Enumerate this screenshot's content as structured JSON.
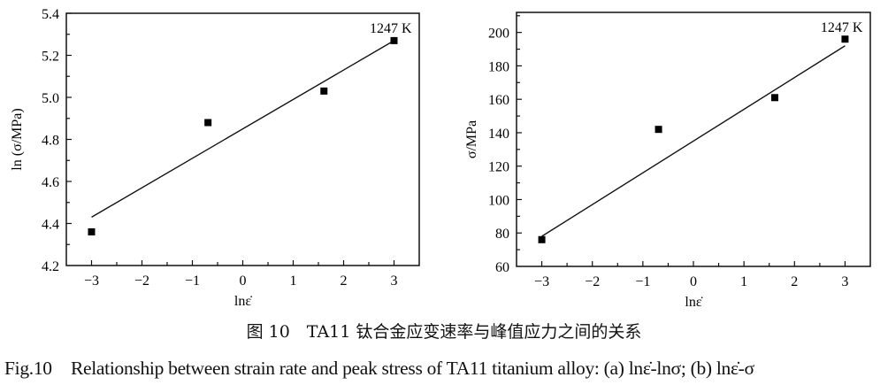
{
  "chart_data": [
    {
      "type": "scatter",
      "panel": "a",
      "xlabel": "lnε̇",
      "ylabel": "ln (σ/MPa)",
      "annotation": "1247 K",
      "xlim": [
        -3.5,
        3.5
      ],
      "ylim": [
        4.2,
        5.4
      ],
      "xticks": [
        -3,
        -2,
        -1,
        0,
        1,
        2,
        3
      ],
      "xtick_labels": [
        "−3",
        "−2",
        "−1",
        "0",
        "1",
        "2",
        "3"
      ],
      "yticks": [
        4.2,
        4.4,
        4.6,
        4.8,
        5.0,
        5.2,
        5.4
      ],
      "ytick_labels": [
        "4.2",
        "4.4",
        "4.6",
        "4.8",
        "5.0",
        "5.2",
        "5.4"
      ],
      "yminor": 0.1,
      "xminor": 0.5,
      "grid": false,
      "series": [
        {
          "name": "1247 K",
          "x": [
            -3.0,
            -0.69,
            1.61,
            3.0
          ],
          "y": [
            4.36,
            4.88,
            5.03,
            5.27
          ]
        }
      ],
      "fit": {
        "x": [
          -3.0,
          3.0
        ],
        "y": [
          4.43,
          5.27
        ]
      }
    },
    {
      "type": "scatter",
      "panel": "b",
      "xlabel": "lnε̇",
      "ylabel": "σ/MPa",
      "annotation": "1247 K",
      "xlim": [
        -3.5,
        3.5
      ],
      "ylim": [
        60,
        212
      ],
      "xticks": [
        -3,
        -2,
        -1,
        0,
        1,
        2,
        3
      ],
      "xtick_labels": [
        "−3",
        "−2",
        "−1",
        "0",
        "1",
        "2",
        "3"
      ],
      "yticks": [
        60,
        80,
        100,
        120,
        140,
        160,
        180,
        200
      ],
      "ytick_labels": [
        "60",
        "80",
        "100",
        "120",
        "140",
        "160",
        "180",
        "200"
      ],
      "yminor": 10,
      "xminor": 0.5,
      "grid": false,
      "series": [
        {
          "name": "1247 K",
          "x": [
            -3.0,
            -0.69,
            1.61,
            3.0
          ],
          "y": [
            76,
            142,
            161,
            196
          ]
        }
      ],
      "fit": {
        "x": [
          -3.0,
          3.0
        ],
        "y": [
          78,
          192
        ]
      }
    }
  ],
  "caption": {
    "cn": "图 10　TA11 钛合金应变速率与峰值应力之间的关系",
    "en": "Fig.10　Relationship between strain rate and peak stress of TA11 titanium alloy: (a) lnε̇-lnσ; (b) lnε̇-σ"
  }
}
